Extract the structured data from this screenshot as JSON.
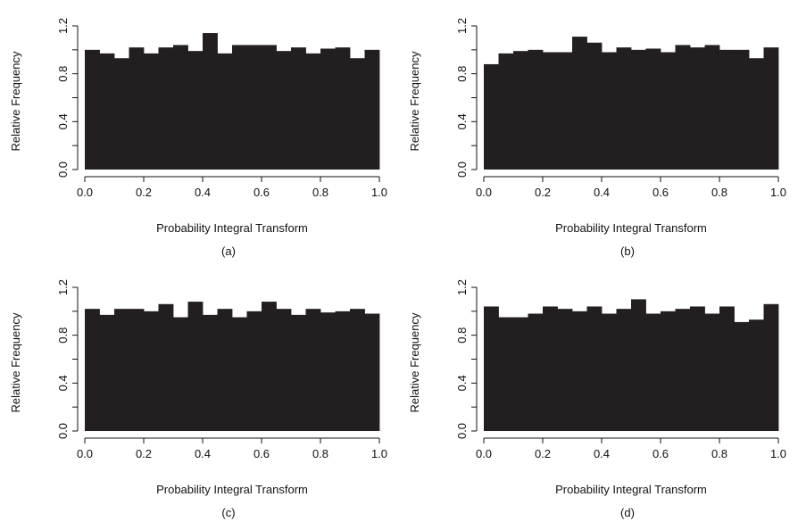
{
  "chart_data": [
    {
      "type": "bar",
      "panel_label": "(a)",
      "xlabel": "Probability Integral Transform",
      "ylabel": "Relative Frequency",
      "xlim": [
        0,
        1
      ],
      "ylim": [
        0,
        1.2
      ],
      "xticks": [
        "0.0",
        "0.2",
        "0.4",
        "0.6",
        "0.8",
        "1.0"
      ],
      "yticks": [
        "0.0",
        "0.4",
        "0.8",
        "1.2"
      ],
      "bin_width": 0.05,
      "values": [
        1.0,
        0.97,
        0.93,
        1.02,
        0.97,
        1.02,
        1.04,
        0.99,
        1.14,
        0.97,
        1.04,
        1.04,
        1.04,
        0.99,
        1.02,
        0.97,
        1.01,
        1.02,
        0.93,
        1.0
      ]
    },
    {
      "type": "bar",
      "panel_label": "(b)",
      "xlabel": "Probability Integral Transform",
      "ylabel": "Relative Frequency",
      "xlim": [
        0,
        1
      ],
      "ylim": [
        0,
        1.2
      ],
      "xticks": [
        "0.0",
        "0.2",
        "0.4",
        "0.6",
        "0.8",
        "1.0"
      ],
      "yticks": [
        "0.0",
        "0.4",
        "0.8",
        "1.2"
      ],
      "bin_width": 0.05,
      "values": [
        0.88,
        0.97,
        0.99,
        1.0,
        0.98,
        0.98,
        1.11,
        1.06,
        0.98,
        1.02,
        1.0,
        1.01,
        0.98,
        1.04,
        1.02,
        1.04,
        1.0,
        1.0,
        0.93,
        1.02
      ]
    },
    {
      "type": "bar",
      "panel_label": "(c)",
      "xlabel": "Probability Integral Transform",
      "ylabel": "Relative Frequency",
      "xlim": [
        0,
        1
      ],
      "ylim": [
        0,
        1.2
      ],
      "xticks": [
        "0.0",
        "0.2",
        "0.4",
        "0.6",
        "0.8",
        "1.0"
      ],
      "yticks": [
        "0.0",
        "0.4",
        "0.8",
        "1.2"
      ],
      "bin_width": 0.05,
      "values": [
        1.02,
        0.97,
        1.02,
        1.02,
        1.0,
        1.06,
        0.95,
        1.08,
        0.97,
        1.02,
        0.95,
        1.0,
        1.08,
        1.02,
        0.97,
        1.02,
        0.99,
        1.0,
        1.02,
        0.98
      ]
    },
    {
      "type": "bar",
      "panel_label": "(d)",
      "xlabel": "Probability Integral Transform",
      "ylabel": "Relative Frequency",
      "xlim": [
        0,
        1
      ],
      "ylim": [
        0,
        1.2
      ],
      "xticks": [
        "0.0",
        "0.2",
        "0.4",
        "0.6",
        "0.8",
        "1.0"
      ],
      "yticks": [
        "0.0",
        "0.4",
        "0.8",
        "1.2"
      ],
      "bin_width": 0.05,
      "values": [
        1.04,
        0.95,
        0.95,
        0.98,
        1.04,
        1.02,
        1.0,
        1.04,
        0.98,
        1.02,
        1.1,
        0.98,
        1.0,
        1.02,
        1.04,
        0.98,
        1.04,
        0.91,
        0.93,
        1.06
      ]
    }
  ],
  "colors": {
    "bar": "#231f20",
    "axis": "#111111",
    "background": "#ffffff"
  }
}
